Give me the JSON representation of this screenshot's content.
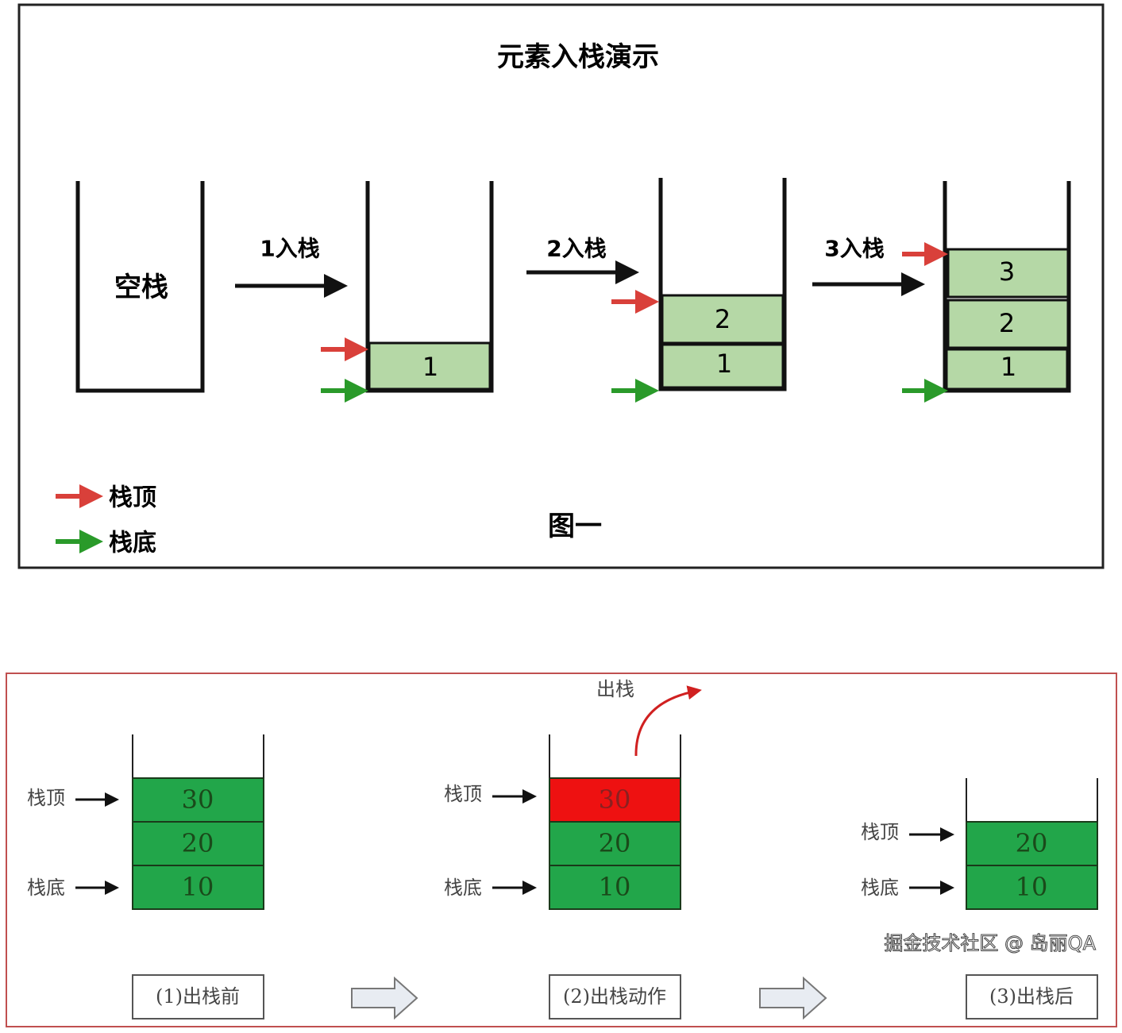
{
  "colors": {
    "stack_top_arrow": "#d9403a",
    "stack_bottom_arrow": "#2a9a2a",
    "push_block": "#b5d8a6",
    "pop_block": "#22a64a",
    "popped_block": "#ee1111",
    "bottom_frame": "#c05050"
  },
  "figure1": {
    "title": "元素入栈演示",
    "empty_stack_label": "空栈",
    "steps": [
      {
        "label": "1入栈",
        "items": [
          "1"
        ]
      },
      {
        "label": "2入栈",
        "items": [
          "1",
          "2"
        ]
      },
      {
        "label": "3入栈",
        "items": [
          "1",
          "2",
          "3"
        ]
      }
    ],
    "legend": {
      "top": "栈顶",
      "bottom": "栈底"
    },
    "caption": "图一"
  },
  "figure2": {
    "pop_label": "出栈",
    "top_label": "栈顶",
    "bottom_label": "栈底",
    "stages": [
      {
        "caption": "(1)出栈前",
        "items": [
          "30",
          "20",
          "10"
        ]
      },
      {
        "caption": "(2)出栈动作",
        "items": [
          "30",
          "20",
          "10"
        ]
      },
      {
        "caption": "(3)出栈后",
        "items": [
          "20",
          "10"
        ]
      }
    ]
  },
  "watermark": "掘金技术社区 @ 岛丽QA"
}
